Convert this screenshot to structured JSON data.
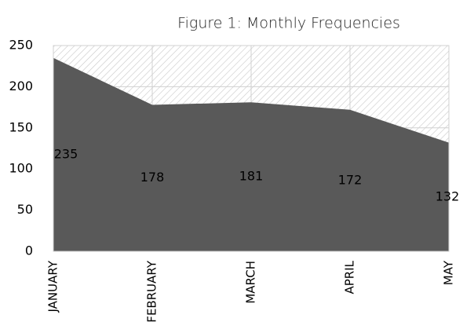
{
  "chart_data": {
    "type": "area",
    "title": "Figure 1: Monthly Frequencies",
    "categories": [
      "JANUARY",
      "FEBRUARY",
      "MARCH",
      "APRIL",
      "MAY"
    ],
    "values": [
      235,
      178,
      181,
      172,
      132
    ],
    "color": "#595959",
    "ylim": [
      0,
      250
    ],
    "yticks": [
      0,
      50,
      100,
      150,
      200,
      250
    ],
    "grid": true
  }
}
